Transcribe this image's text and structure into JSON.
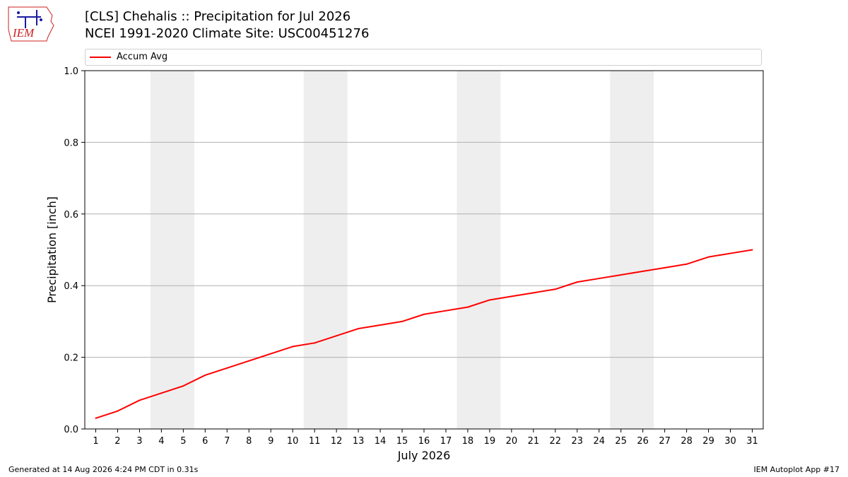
{
  "title_line1": "[CLS] Chehalis :: Precipitation for Jul 2026",
  "title_line2": "NCEI 1991-2020 Climate Site: USC00451276",
  "logo_text": "IEM",
  "footer_left": "Generated at 14 Aug 2026 4:24 PM CDT in 0.31s",
  "footer_right": "IEM Autoplot App #17",
  "colors": {
    "line": "#ff0000",
    "weekend_band": "#eeeeee",
    "grid": "#b0b0b0",
    "logo": "#cc2222"
  },
  "chart_data": {
    "type": "line",
    "xlabel": "July 2026",
    "ylabel": "Precipitation [inch]",
    "ylim": [
      0.0,
      1.0
    ],
    "yticks": [
      "0.0",
      "0.2",
      "0.4",
      "0.6",
      "0.8",
      "1.0"
    ],
    "grid": "horizontal",
    "legend_position": "top",
    "x": [
      1,
      2,
      3,
      4,
      5,
      6,
      7,
      8,
      9,
      10,
      11,
      12,
      13,
      14,
      15,
      16,
      17,
      18,
      19,
      20,
      21,
      22,
      23,
      24,
      25,
      26,
      27,
      28,
      29,
      30,
      31
    ],
    "weekend_bands": [
      [
        4,
        5
      ],
      [
        11,
        12
      ],
      [
        18,
        19
      ],
      [
        25,
        26
      ]
    ],
    "series": [
      {
        "name": "Accum Avg",
        "values": [
          0.03,
          0.05,
          0.08,
          0.1,
          0.12,
          0.15,
          0.17,
          0.19,
          0.21,
          0.23,
          0.24,
          0.26,
          0.28,
          0.29,
          0.3,
          0.32,
          0.33,
          0.34,
          0.36,
          0.37,
          0.38,
          0.39,
          0.41,
          0.42,
          0.43,
          0.44,
          0.45,
          0.46,
          0.48,
          0.49,
          0.5
        ]
      }
    ]
  }
}
